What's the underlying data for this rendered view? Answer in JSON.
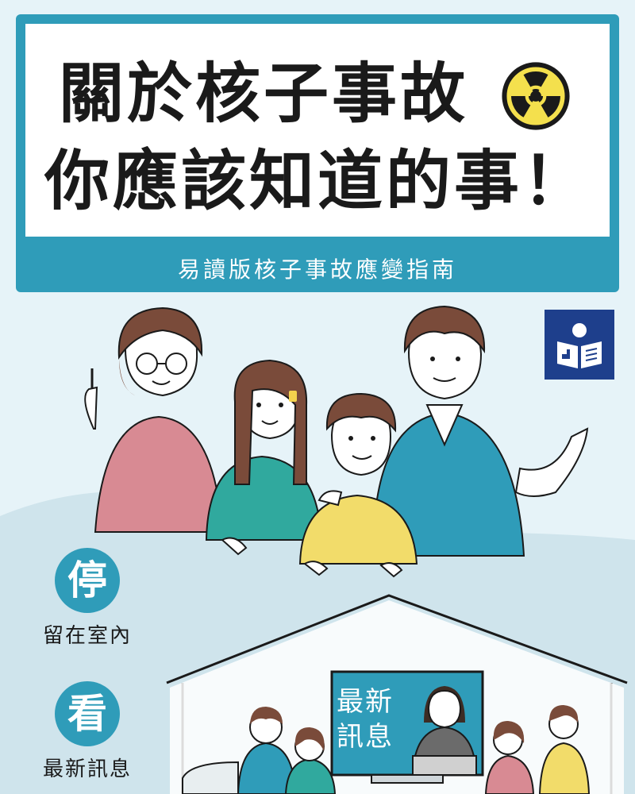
{
  "header": {
    "title_line1": "關於核子事故",
    "title_line2": "你應該知道的事！",
    "subtitle": "易讀版核子事故應變指南",
    "title_icon": "radiation-icon"
  },
  "badge": {
    "icon": "easy-read-icon"
  },
  "actions": [
    {
      "char": "停",
      "label": "留在室內"
    },
    {
      "char": "看",
      "label": "最新訊息"
    }
  ],
  "tv": {
    "text": "最新訊息"
  },
  "colors": {
    "accent": "#2f9cb9",
    "background": "#e6f3f8",
    "badge": "#1e3f8c",
    "radiation": "#f4e04d"
  }
}
